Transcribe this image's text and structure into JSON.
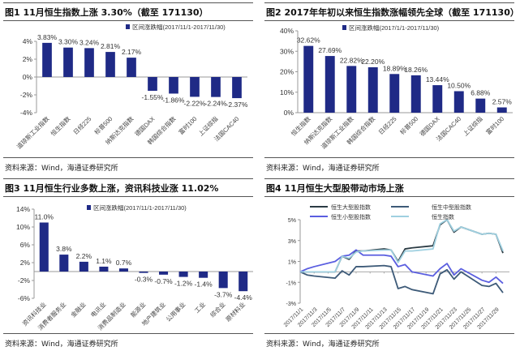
{
  "chart_data": [
    {
      "type": "bar",
      "title": "图1  11月恒生指数上涨 3.30%（截至 171130）",
      "legend": "区间涨跌幅(2017/11/1-2017/11/30)",
      "legend_position": "top-right",
      "categories": [
        "道琼斯工业指数",
        "恒生指数",
        "日经225",
        "标普500",
        "纳斯达克指数",
        "德国DAX",
        "韩国综合指数",
        "富时100",
        "上证综指",
        "法国CAC40"
      ],
      "values": [
        3.83,
        3.3,
        3.24,
        2.81,
        2.17,
        -1.55,
        -1.86,
        -2.22,
        -2.24,
        -2.37
      ],
      "data_labels": [
        "3.83%",
        "3.30%",
        "3.24%",
        "2.81%",
        "2.17%",
        "-1.55%",
        "-1.86%",
        "-2.22%",
        "-2.24%",
        "-2.37%"
      ],
      "yticks": [
        "4%",
        "2%",
        "0%",
        "-2%",
        "-4%"
      ],
      "ylim": [
        -4,
        4
      ],
      "unit": "%",
      "grid": false,
      "color": "#1f2a86",
      "source": "资料来源：Wind，海通证券研究所"
    },
    {
      "type": "bar",
      "title": "图2  2017年年初以来恒生指数涨幅领先全球（截至 171130）",
      "legend": "区间涨跌幅(2017/1/1-2017/11/30)",
      "legend_position": "top",
      "categories": [
        "恒生指数",
        "纳斯达克指数",
        "道琼斯工业指数",
        "韩国综合指数",
        "日经225",
        "标普500",
        "德国DAX",
        "法国CAC40",
        "上证综指",
        "富时100"
      ],
      "values": [
        32.62,
        27.69,
        22.82,
        22.2,
        18.89,
        18.26,
        13.44,
        10.5,
        6.88,
        2.57
      ],
      "data_labels": [
        "32.62%",
        "27.69%",
        "22.82%",
        "22.20%",
        "18.89%",
        "18.26%",
        "13.44%",
        "10.50%",
        "6.88%",
        "2.57%"
      ],
      "yticks": [
        "40%",
        "30%",
        "20%",
        "10%",
        "0%"
      ],
      "ylim": [
        0,
        40
      ],
      "unit": "%",
      "grid": false,
      "color": "#1f2a86",
      "source": "资料来源：Wind，海通证券研究所"
    },
    {
      "type": "bar",
      "title": "图3  11月恒生行业多数上涨，资讯科技业涨 11.02%",
      "legend": "区间涨跌幅(2017/11/1-2017/11/30)",
      "legend_position": "top",
      "categories": [
        "资讯科技业",
        "消费者服务业",
        "金融业",
        "电讯业",
        "消费品制造业",
        "能源业",
        "地产建筑业",
        "公用事业",
        "工业",
        "综合业",
        "原材料业"
      ],
      "values": [
        11.0,
        3.8,
        2.2,
        1.1,
        0.7,
        -0.3,
        -0.7,
        -1.2,
        -1.4,
        -3.7,
        -4.4
      ],
      "data_labels": [
        "11.0%",
        "3.8%",
        "2.2%",
        "1.1%",
        "0.7%",
        "-0.3%",
        "-0.7%",
        "-1.2%",
        "-1.4%",
        "-3.7%",
        "-4.4%"
      ],
      "yticks": [
        "14%",
        "10%",
        "6%",
        "2%",
        "-2%",
        "-6%"
      ],
      "ylim": [
        -6,
        14
      ],
      "unit": "%",
      "grid": false,
      "color": "#1f2a86",
      "source": "资料来源：Wind，海通证券研究所"
    },
    {
      "type": "line",
      "title": "图4  11月恒生大型股带动市场上涨",
      "legend_position": "top",
      "x": [
        "2017/11/1",
        "2017/11/2",
        "2017/11/3",
        "2017/11/6",
        "2017/11/7",
        "2017/11/8",
        "2017/11/9",
        "2017/11/10",
        "2017/11/13",
        "2017/11/14",
        "2017/11/15",
        "2017/11/16",
        "2017/11/17",
        "2017/11/20",
        "2017/11/21",
        "2017/11/22",
        "2017/11/23",
        "2017/11/24",
        "2017/11/27",
        "2017/11/28",
        "2017/11/29",
        "2017/11/30"
      ],
      "xticks": [
        "2017/11/1",
        "2017/11/3",
        "2017/11/5",
        "2017/11/7",
        "2017/11/9",
        "2017/11/11",
        "2017/11/13",
        "2017/11/15",
        "2017/11/17",
        "2017/11/19",
        "2017/11/21",
        "2017/11/23",
        "2017/11/25",
        "2017/11/27",
        "2017/11/29"
      ],
      "yticks": [
        "5%",
        "3%",
        "1%",
        "-1%",
        "-3%"
      ],
      "ylim": [
        -3,
        5
      ],
      "unit": "%",
      "grid": false,
      "series": [
        {
          "name": "恒生大型股指数",
          "color": "#2b3b44",
          "values": [
            0,
            0,
            0,
            0,
            1.5,
            1.2,
            2.0,
            2.0,
            2.2,
            2.1,
            1.0,
            2.2,
            2.3,
            2.5,
            4.5,
            5.0,
            3.8,
            4.3,
            3.6,
            3.7,
            3.6,
            1.8
          ]
        },
        {
          "name": "恒生中型股指数",
          "color": "#3d5a78",
          "values": [
            0,
            -0.3,
            -0.4,
            -0.6,
            0.1,
            -0.3,
            0.5,
            0.5,
            0.6,
            0.5,
            -1.6,
            -1.4,
            -1.7,
            -2.1,
            -0.2,
            0.2,
            -0.7,
            0.0,
            -1.3,
            -1.4,
            -1.1,
            -2.0
          ]
        },
        {
          "name": "恒生小型股指数",
          "color": "#5a5ee0",
          "values": [
            0,
            0.3,
            0.5,
            1.0,
            1.5,
            1.6,
            2.1,
            1.6,
            1.6,
            1.5,
            0.5,
            0.7,
            0.0,
            -0.4,
            0.3,
            0.8,
            -0.3,
            0.3,
            -0.8,
            -1.0,
            -0.5,
            -1.1
          ]
        },
        {
          "name": "恒生指数",
          "color": "#9fd0e0",
          "values": [
            0,
            0,
            0,
            0,
            1.5,
            1.3,
            1.9,
            2.0,
            2.1,
            2.1,
            0.9,
            2.0,
            2.0,
            2.2,
            4.6,
            5.0,
            3.9,
            4.3,
            3.6,
            3.7,
            3.6,
            2.0
          ]
        }
      ],
      "source": "资料来源：Wind，海通证券研究所"
    }
  ]
}
